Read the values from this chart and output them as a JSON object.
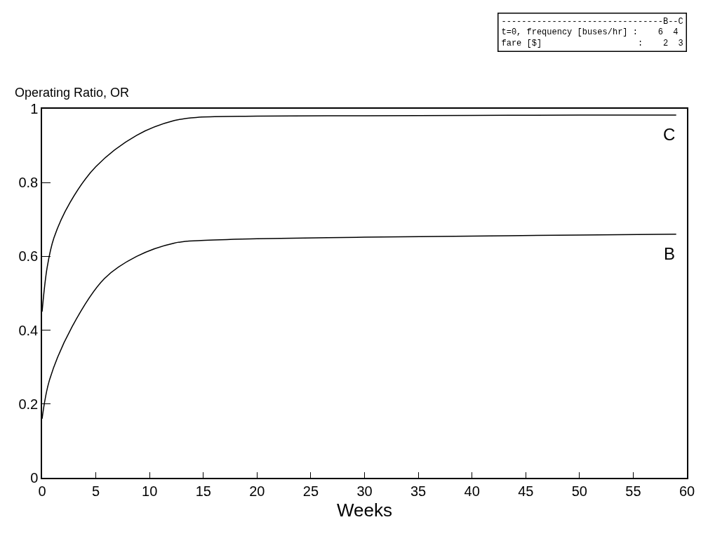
{
  "chart_data": {
    "type": "line",
    "ylabel": "Operating Ratio, OR",
    "xlabel": "Weeks",
    "annotations": [
      "--------------------------------B--C",
      "t=0, frequency [buses/hr] :    6  4",
      "fare [$]                   :    2  3"
    ],
    "xlim": [
      0,
      60
    ],
    "xticks": [
      0,
      5,
      10,
      15,
      20,
      25,
      30,
      35,
      40,
      45,
      50,
      55,
      60
    ],
    "ylim": [
      0,
      1
    ],
    "yticks": [
      0,
      0.2,
      0.4,
      0.6,
      0.8,
      1
    ],
    "grid": false,
    "legend": false,
    "marker": "none",
    "line_style": "solid",
    "series": [
      {
        "name": "C",
        "color": "#000000",
        "x": [
          0,
          0.47,
          1.1,
          2.6,
          5,
          8.8,
          12.3,
          14.6,
          20,
          30,
          40,
          50,
          59
        ],
        "values": [
          0.45,
          0.57,
          0.65,
          0.746,
          0.843,
          0.928,
          0.968,
          0.977,
          0.98,
          0.981,
          0.982,
          0.983,
          0.983
        ]
      },
      {
        "name": "B",
        "color": "#000000",
        "x": [
          0,
          0.7,
          2.8,
          5.8,
          8.8,
          12.3,
          14.8,
          20,
          30,
          40,
          50,
          59
        ],
        "values": [
          0.16,
          0.266,
          0.41,
          0.54,
          0.6,
          0.636,
          0.643,
          0.648,
          0.652,
          0.655,
          0.658,
          0.66
        ]
      }
    ]
  }
}
